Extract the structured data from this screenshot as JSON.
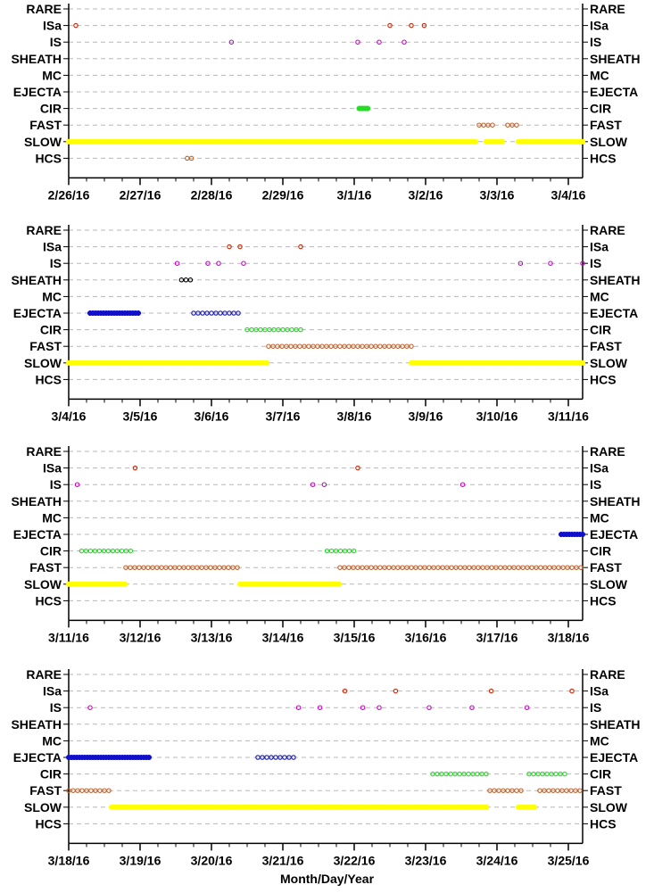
{
  "x_axis_title": "Month/Day/Year",
  "colors": {
    "SLOW": "#ffff00",
    "FAST": "#c0602a",
    "CIR": "#22dd22",
    "EJECTA_open": "#1a1aaa",
    "EJECTA_solid": "#1010cc",
    "IS": "#cc00cc",
    "ISa": "#cc2200",
    "SHEATH": "#000000",
    "HCS": "#c0602a",
    "grid": "#b8b8b8",
    "axis": "#000000"
  },
  "chart_data": [
    {
      "type": "scatter",
      "panel": 1,
      "categories": [
        "RARE",
        "ISa",
        "IS",
        "SHEATH",
        "MC",
        "EJECTA",
        "CIR",
        "FAST",
        "SLOW",
        "HCS"
      ],
      "xlim": [
        0,
        7.2
      ],
      "ticks": [
        {
          "x": 0,
          "label": "2/26/16"
        },
        {
          "x": 1,
          "label": "2/27/16"
        },
        {
          "x": 2,
          "label": "2/28/16"
        },
        {
          "x": 3,
          "label": "2/29/16"
        },
        {
          "x": 4,
          "label": "3/1/16"
        },
        {
          "x": 5,
          "label": "3/2/16"
        },
        {
          "x": 6,
          "label": "3/3/16"
        },
        {
          "x": 7,
          "label": "3/4/16"
        }
      ],
      "series": [
        {
          "category": "ISa",
          "style": "ring",
          "points": [
            0.1,
            4.5,
            4.8,
            4.98
          ]
        },
        {
          "category": "IS",
          "style": "ring",
          "points": [
            2.28,
            4.05,
            4.35,
            4.7
          ]
        },
        {
          "category": "CIR",
          "style": "fill",
          "points": [
            4.07,
            4.1,
            4.13,
            4.16,
            4.19
          ]
        },
        {
          "category": "FAST",
          "style": "ring",
          "runs": [
            [
              5.75,
              5.95
            ],
            [
              6.15,
              6.3
            ]
          ]
        },
        {
          "category": "SLOW",
          "style": "fill",
          "runs": [
            [
              0.0,
              5.7
            ],
            [
              5.85,
              6.1
            ],
            [
              6.3,
              7.2
            ]
          ]
        },
        {
          "category": "HCS",
          "style": "ring",
          "points": [
            1.66,
            1.72
          ]
        }
      ]
    },
    {
      "type": "scatter",
      "panel": 2,
      "categories": [
        "RARE",
        "ISa",
        "IS",
        "SHEATH",
        "MC",
        "EJECTA",
        "CIR",
        "FAST",
        "SLOW",
        "HCS"
      ],
      "xlim": [
        0,
        7.2
      ],
      "ticks": [
        {
          "x": 0,
          "label": "3/4/16"
        },
        {
          "x": 1,
          "label": "3/5/16"
        },
        {
          "x": 2,
          "label": "3/6/16"
        },
        {
          "x": 3,
          "label": "3/7/16"
        },
        {
          "x": 4,
          "label": "3/8/16"
        },
        {
          "x": 5,
          "label": "3/9/16"
        },
        {
          "x": 6,
          "label": "3/10/16"
        },
        {
          "x": 7,
          "label": "3/11/16"
        }
      ],
      "series": [
        {
          "category": "ISa",
          "style": "ring",
          "points": [
            2.25,
            2.4,
            3.25
          ]
        },
        {
          "category": "IS",
          "style": "ring",
          "points": [
            1.52,
            1.95,
            2.1,
            2.45,
            6.33,
            6.75,
            7.2
          ]
        },
        {
          "category": "SHEATH",
          "style": "ring",
          "runs": [
            [
              1.58,
              1.75
            ]
          ]
        },
        {
          "category": "EJECTA",
          "style": "fill",
          "runs": [
            [
              0.3,
              1.0
            ]
          ]
        },
        {
          "category": "EJECTA",
          "style": "ring",
          "runs": [
            [
              1.75,
              2.4
            ]
          ]
        },
        {
          "category": "CIR",
          "style": "ring",
          "runs": [
            [
              2.5,
              3.25
            ]
          ]
        },
        {
          "category": "FAST",
          "style": "ring",
          "runs": [
            [
              2.8,
              4.8
            ]
          ]
        },
        {
          "category": "SLOW",
          "style": "fill",
          "runs": [
            [
              0.0,
              2.8
            ],
            [
              4.8,
              7.2
            ]
          ]
        }
      ]
    },
    {
      "type": "scatter",
      "panel": 3,
      "categories": [
        "RARE",
        "ISa",
        "IS",
        "SHEATH",
        "MC",
        "EJECTA",
        "CIR",
        "FAST",
        "SLOW",
        "HCS"
      ],
      "xlim": [
        0,
        7.2
      ],
      "ticks": [
        {
          "x": 0,
          "label": "3/11/16"
        },
        {
          "x": 1,
          "label": "3/12/16"
        },
        {
          "x": 2,
          "label": "3/13/16"
        },
        {
          "x": 3,
          "label": "3/14/16"
        },
        {
          "x": 4,
          "label": "3/15/16"
        },
        {
          "x": 5,
          "label": "3/16/16"
        },
        {
          "x": 6,
          "label": "3/17/16"
        },
        {
          "x": 7,
          "label": "3/18/16"
        }
      ],
      "series": [
        {
          "category": "ISa",
          "style": "ring",
          "points": [
            0.93,
            4.05
          ]
        },
        {
          "category": "IS",
          "style": "ring",
          "points": [
            0.12,
            3.42,
            3.58,
            5.52
          ]
        },
        {
          "category": "EJECTA",
          "style": "fill",
          "runs": [
            [
              6.9,
              7.2
            ]
          ]
        },
        {
          "category": "CIR",
          "style": "ring",
          "runs": [
            [
              0.18,
              0.92
            ],
            [
              3.62,
              4.0
            ]
          ]
        },
        {
          "category": "FAST",
          "style": "ring",
          "runs": [
            [
              0.8,
              2.4
            ],
            [
              3.8,
              7.2
            ]
          ]
        },
        {
          "category": "SLOW",
          "style": "fill",
          "runs": [
            [
              0.0,
              0.8
            ],
            [
              2.4,
              3.8
            ]
          ]
        }
      ]
    },
    {
      "type": "scatter",
      "panel": 4,
      "categories": [
        "RARE",
        "ISa",
        "IS",
        "SHEATH",
        "MC",
        "EJECTA",
        "CIR",
        "FAST",
        "SLOW",
        "HCS"
      ],
      "xlim": [
        0,
        7.2
      ],
      "ticks": [
        {
          "x": 0,
          "label": "3/18/16"
        },
        {
          "x": 1,
          "label": "3/19/16"
        },
        {
          "x": 2,
          "label": "3/20/16"
        },
        {
          "x": 3,
          "label": "3/21/16"
        },
        {
          "x": 4,
          "label": "3/22/16"
        },
        {
          "x": 5,
          "label": "3/23/16"
        },
        {
          "x": 6,
          "label": "3/24/16"
        },
        {
          "x": 7,
          "label": "3/25/16"
        }
      ],
      "series": [
        {
          "category": "ISa",
          "style": "ring",
          "points": [
            3.87,
            4.58,
            5.92,
            7.05
          ]
        },
        {
          "category": "IS",
          "style": "ring",
          "points": [
            0.3,
            3.22,
            3.52,
            4.12,
            4.35,
            5.05,
            5.65,
            6.42
          ]
        },
        {
          "category": "EJECTA",
          "style": "fill",
          "runs": [
            [
              0.0,
              1.15
            ]
          ]
        },
        {
          "category": "EJECTA",
          "style": "ring",
          "runs": [
            [
              2.65,
              3.2
            ]
          ]
        },
        {
          "category": "CIR",
          "style": "ring",
          "runs": [
            [
              5.1,
              5.9
            ],
            [
              6.45,
              7.0
            ]
          ]
        },
        {
          "category": "FAST",
          "style": "ring",
          "runs": [
            [
              0.0,
              0.6
            ],
            [
              5.9,
              6.35
            ],
            [
              6.6,
              7.2
            ]
          ]
        },
        {
          "category": "SLOW",
          "style": "fill",
          "runs": [
            [
              0.6,
              5.85
            ],
            [
              6.3,
              6.55
            ]
          ]
        }
      ]
    }
  ]
}
